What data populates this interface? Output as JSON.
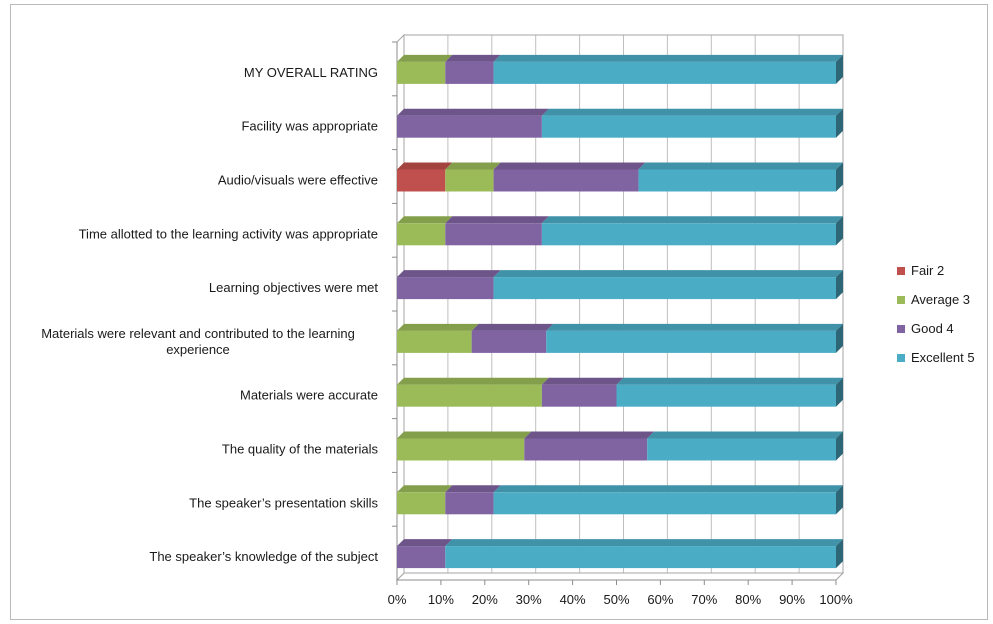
{
  "chart_data": {
    "type": "bar",
    "orientation": "horizontal",
    "stacked": "percent",
    "categories": [
      "MY OVERALL RATING",
      "Facility was appropriate",
      "Audio/visuals were effective",
      "Time allotted to the learning activity was appropriate",
      "Learning objectives were met",
      "Materials were relevant and contributed to the learning experience",
      "Materials were accurate",
      "The quality of the materials",
      "The speaker’s presentation skills",
      "The speaker’s knowledge of the subject"
    ],
    "series": [
      {
        "name": "Fair 2",
        "color": "#c0504d",
        "values": [
          0,
          0,
          11,
          0,
          0,
          0,
          0,
          0,
          0,
          0
        ]
      },
      {
        "name": "Average 3",
        "color": "#9bbb59",
        "values": [
          11,
          0,
          11,
          11,
          0,
          17,
          33,
          29,
          11,
          0
        ]
      },
      {
        "name": "Good 4",
        "color": "#8064a2",
        "values": [
          11,
          33,
          33,
          22,
          22,
          17,
          17,
          28,
          11,
          11
        ]
      },
      {
        "name": "Excellent 5",
        "color": "#4bacc6",
        "values": [
          78,
          67,
          45,
          67,
          78,
          66,
          50,
          43,
          78,
          89
        ]
      }
    ],
    "xlim": [
      0,
      100
    ],
    "xticks": [
      "0%",
      "10%",
      "20%",
      "30%",
      "40%",
      "50%",
      "60%",
      "70%",
      "80%",
      "90%",
      "100%"
    ],
    "gridlines": true,
    "legend_position": "right",
    "title": "",
    "xlabel": "",
    "ylabel": ""
  }
}
